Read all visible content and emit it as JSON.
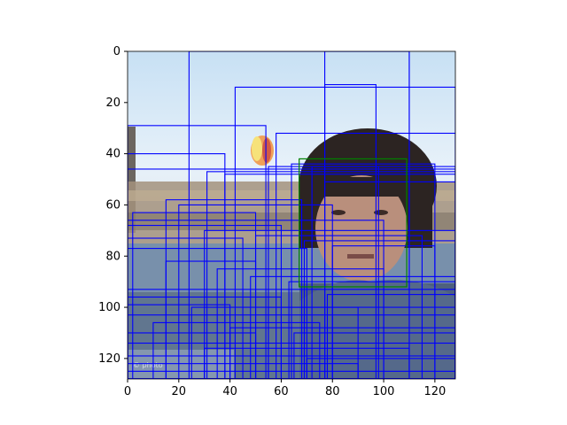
{
  "image": {
    "description_icons": [
      "person-face",
      "hot-air-balloon",
      "city-skyline",
      "sky"
    ],
    "colors": {
      "sky_top": "#cfe6f7",
      "sky_mid": "#e9f3fb",
      "balloon": "#f0a05a",
      "hair": "#2a2220",
      "skin": "#b78c7a",
      "city": "#9b8c7a",
      "foreground": "#6e87a6",
      "box_blue": "#0000ff",
      "box_green": "#008000"
    }
  },
  "chart_data": {
    "type": "image",
    "xlim": [
      0,
      128
    ],
    "ylim": [
      128,
      0
    ],
    "x_ticks": [
      "0",
      "20",
      "40",
      "60",
      "80",
      "100",
      "120"
    ],
    "y_ticks": [
      "0",
      "20",
      "40",
      "60",
      "80",
      "100",
      "120"
    ],
    "green_box": {
      "x0": 67,
      "y0": 42,
      "x1": 109,
      "y1": 92
    },
    "blue_boxes": [
      [
        24,
        0,
        110,
        128
      ],
      [
        77,
        0,
        110,
        128
      ],
      [
        42,
        14,
        128,
        128
      ],
      [
        77,
        13,
        97,
        128
      ],
      [
        0,
        29,
        54,
        128
      ],
      [
        58,
        32,
        128,
        128
      ],
      [
        0,
        40,
        38,
        128
      ],
      [
        0,
        46,
        128,
        128
      ],
      [
        31,
        47,
        128,
        128
      ],
      [
        38,
        48,
        128,
        128
      ],
      [
        55,
        45,
        98,
        128
      ],
      [
        64,
        44,
        120,
        128
      ],
      [
        72,
        45,
        128,
        128
      ],
      [
        77,
        51,
        128,
        128
      ],
      [
        15,
        58,
        68,
        128
      ],
      [
        20,
        60,
        80,
        128
      ],
      [
        2,
        63,
        50,
        128
      ],
      [
        0,
        66,
        100,
        128
      ],
      [
        0,
        68,
        60,
        128
      ],
      [
        30,
        70,
        128,
        128
      ],
      [
        0,
        73,
        45,
        128
      ],
      [
        50,
        72,
        115,
        128
      ],
      [
        69,
        74,
        128,
        128
      ],
      [
        80,
        76,
        120,
        128
      ],
      [
        0,
        77,
        70,
        128
      ],
      [
        15,
        82,
        50,
        128
      ],
      [
        35,
        85,
        100,
        128
      ],
      [
        48,
        88,
        128,
        128
      ],
      [
        63,
        90,
        128,
        128
      ],
      [
        0,
        93,
        128,
        128
      ],
      [
        0,
        96,
        60,
        128
      ],
      [
        78,
        95,
        128,
        128
      ],
      [
        0,
        99,
        40,
        128
      ],
      [
        25,
        100,
        90,
        128
      ],
      [
        55,
        100,
        128,
        128
      ],
      [
        0,
        103,
        128,
        128
      ],
      [
        10,
        106,
        75,
        128
      ],
      [
        40,
        108,
        128,
        128
      ],
      [
        0,
        110,
        50,
        128
      ],
      [
        65,
        110,
        128,
        128
      ],
      [
        0,
        114,
        128,
        128
      ],
      [
        30,
        116,
        110,
        128
      ],
      [
        0,
        119,
        128,
        128
      ],
      [
        70,
        120,
        128,
        128
      ],
      [
        0,
        122,
        90,
        128
      ],
      [
        0,
        125,
        128,
        128
      ]
    ]
  }
}
